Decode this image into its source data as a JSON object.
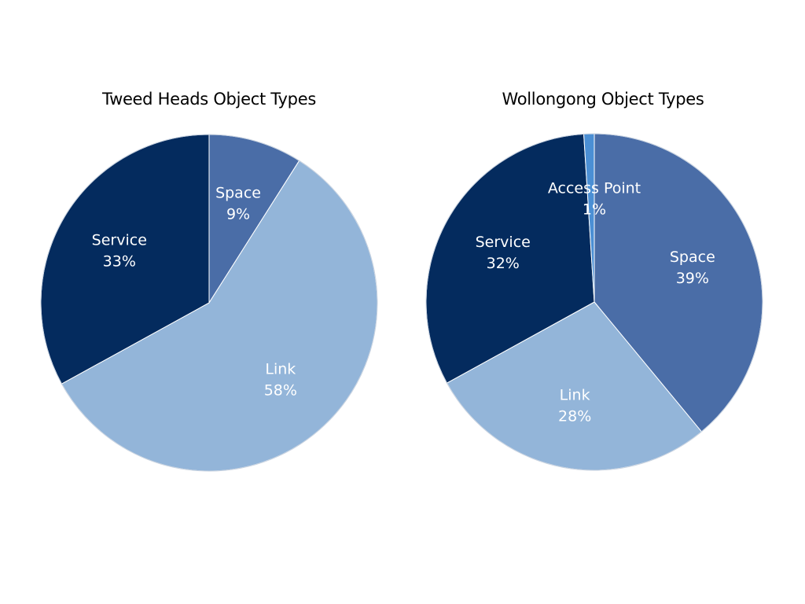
{
  "chart_data": [
    {
      "type": "pie",
      "title": "Tweed Heads Object Types",
      "slices": [
        {
          "name": "Space",
          "value": 9,
          "label": "9%",
          "color": "#4a6da7"
        },
        {
          "name": "Link",
          "value": 58,
          "label": "58%",
          "color": "#93b5d9"
        },
        {
          "name": "Service",
          "value": 33,
          "label": "33%",
          "color": "#042b5e"
        }
      ]
    },
    {
      "type": "pie",
      "title": "Wollongong Object Types",
      "slices": [
        {
          "name": "Space",
          "value": 39,
          "label": "39%",
          "color": "#4a6da7"
        },
        {
          "name": "Link",
          "value": 28,
          "label": "28%",
          "color": "#93b5d9"
        },
        {
          "name": "Service",
          "value": 32,
          "label": "32%",
          "color": "#042b5e"
        },
        {
          "name": "Access Point",
          "value": 1,
          "label": "1%",
          "color": "#4b8fd4"
        }
      ]
    }
  ]
}
